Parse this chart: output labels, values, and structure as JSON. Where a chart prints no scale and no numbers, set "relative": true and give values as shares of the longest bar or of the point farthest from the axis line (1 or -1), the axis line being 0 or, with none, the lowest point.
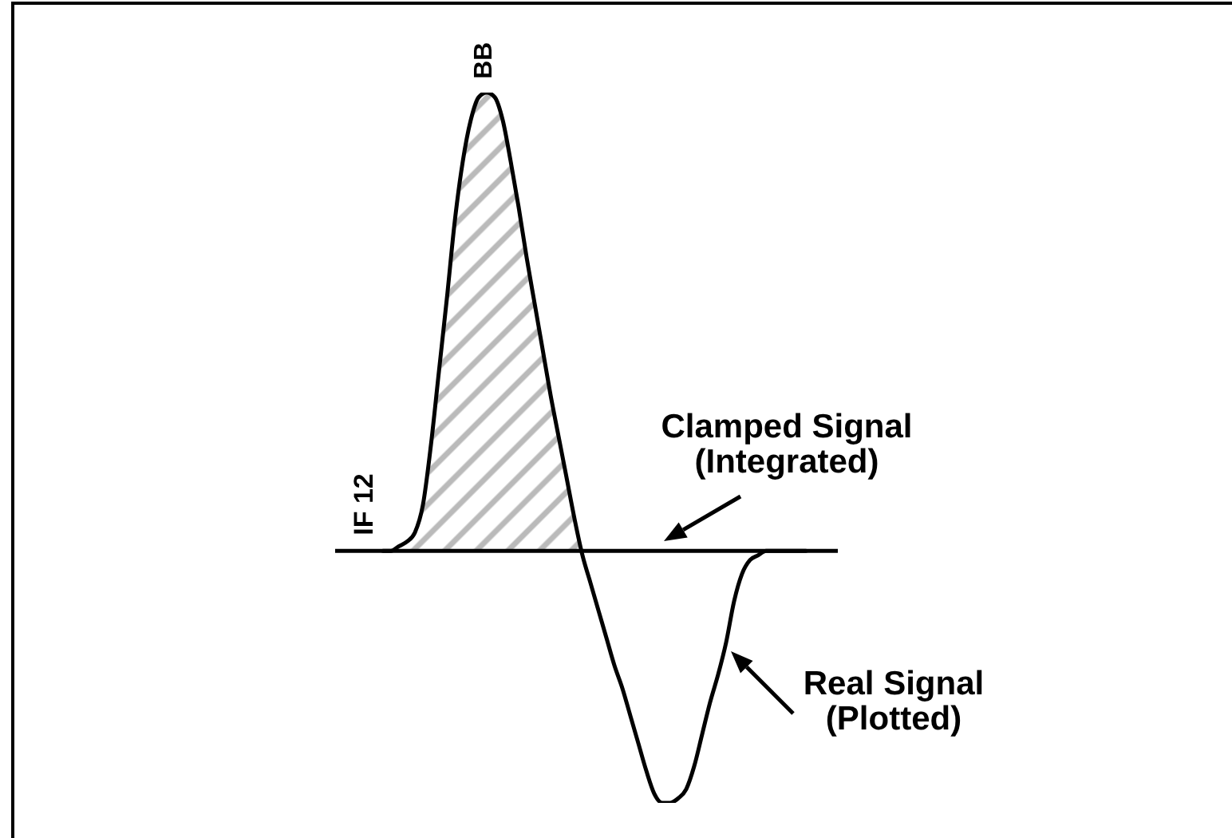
{
  "chart_data": {
    "type": "line",
    "relative": true,
    "categories": [
      null,
      null,
      null,
      null,
      null,
      null,
      null,
      null,
      null,
      null,
      null,
      null,
      null,
      null,
      null,
      null,
      null,
      null,
      null,
      null,
      null,
      null,
      null,
      null,
      null,
      null,
      null,
      null,
      null,
      null,
      null,
      null,
      null,
      null,
      null,
      null,
      null,
      null,
      null,
      null,
      null,
      null,
      null,
      null,
      null,
      null,
      null,
      null,
      null,
      null,
      null,
      null,
      null,
      null,
      null,
      null,
      null,
      null,
      null,
      null,
      null,
      null,
      null,
      null
    ],
    "series": [
      {
        "type": "area",
        "color": "#8c8c8c",
        "values": [
          null,
          null,
          null,
          null,
          null,
          null,
          0,
          0,
          0.01,
          0.02,
          0.04,
          0.1,
          0.23,
          0.39,
          0.55,
          0.72,
          0.85,
          0.94,
          0.99,
          1,
          0.99,
          0.94,
          0.85,
          0.75,
          0.64,
          0.54,
          0.44,
          0.34,
          0.25,
          0.16,
          0.07,
          0,
          null,
          null,
          null,
          null,
          null,
          null,
          null,
          null,
          null,
          null,
          null,
          null,
          null,
          null,
          null,
          null,
          null,
          null,
          null,
          null,
          null,
          null,
          null,
          null,
          null,
          null,
          null,
          null,
          null,
          null,
          null,
          null
        ]
      },
      {
        "color": "#000000",
        "values": [
          null,
          null,
          null,
          null,
          null,
          null,
          0,
          0,
          0.01,
          0.02,
          0.04,
          0.1,
          0.23,
          0.39,
          0.55,
          0.72,
          0.85,
          0.94,
          0.99,
          1,
          0.99,
          0.94,
          0.85,
          0.75,
          0.64,
          0.54,
          0.44,
          0.34,
          0.25,
          0.16,
          0.07,
          -0.01,
          -0.07,
          -0.13,
          -0.19,
          -0.25,
          -0.3,
          -0.36,
          -0.42,
          -0.48,
          -0.53,
          -0.55,
          -0.55,
          -0.54,
          -0.52,
          -0.47,
          -0.4,
          -0.33,
          -0.27,
          -0.2,
          -0.11,
          -0.05,
          -0.02,
          -0.01,
          0,
          0,
          0,
          0,
          0,
          0,
          null,
          null,
          null,
          null
        ]
      }
    ],
    "ref_lines": [
      {
        "axis": "y",
        "value": 0,
        "color": "#000000"
      }
    ],
    "annotations": [
      "BB",
      "IF 12",
      "Clamped Signal (Integrated)",
      "Real Signal (Plotted)"
    ]
  }
}
